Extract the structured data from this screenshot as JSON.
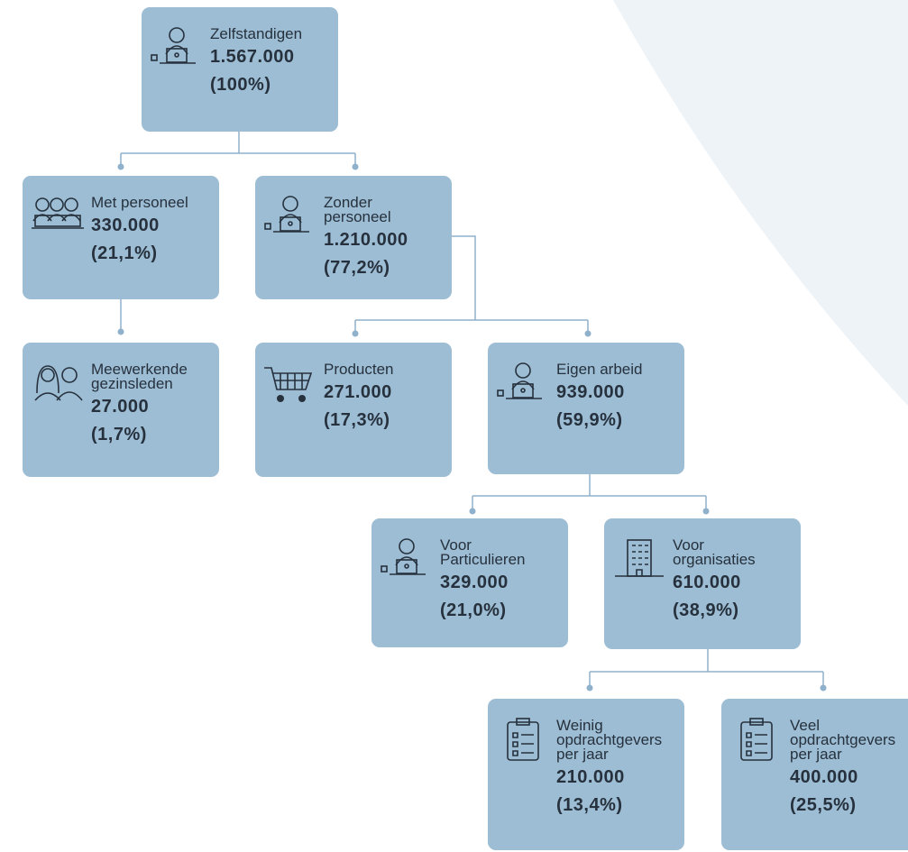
{
  "nodes": [
    {
      "label": "Zelfstandigen",
      "value": "1.567.000",
      "percent": "(100%)"
    },
    {
      "label": "Met personeel",
      "value": "330.000",
      "percent": "(21,1%)"
    },
    {
      "label": "Zonder personeel",
      "value": "1.210.000",
      "percent": "(77,2%)"
    },
    {
      "label": "Meewerkende gezinsleden",
      "value": "27.000",
      "percent": "(1,7%)"
    },
    {
      "label": "Producten",
      "value": "271.000",
      "percent": "(17,3%)"
    },
    {
      "label": "Eigen arbeid",
      "value": "939.000",
      "percent": "(59,9%)"
    },
    {
      "label": "Voor Particulieren",
      "value": "329.000",
      "percent": "(21,0%)"
    },
    {
      "label": "Voor organisaties",
      "value": "610.000",
      "percent": "(38,9%)"
    },
    {
      "label": "Weinig opdrachtgevers per jaar",
      "value": "210.000",
      "percent": "(13,4%)"
    },
    {
      "label": "Veel opdrachtgevers per jaar",
      "value": "400.000",
      "percent": "(25,5%)"
    }
  ]
}
